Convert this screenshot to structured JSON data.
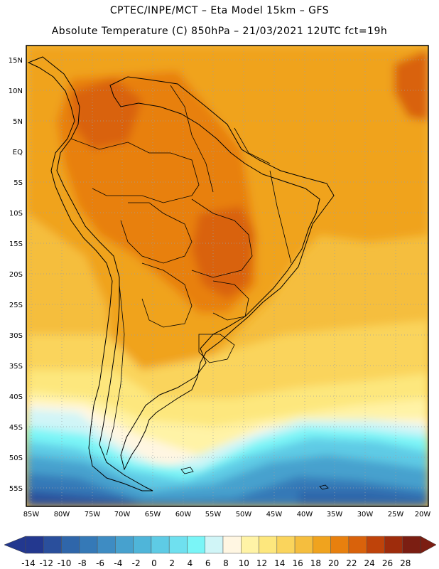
{
  "header": {
    "line1": "CPTEC/INPE/MCT –  Eta Model 15km – GFS",
    "line2": "Absolute Temperature (C) 850hPa – 21/03/2021 12UTC fct=19h"
  },
  "map": {
    "lat_labels": [
      "15N",
      "10N",
      "5N",
      "EQ",
      "5S",
      "10S",
      "15S",
      "20S",
      "25S",
      "30S",
      "35S",
      "40S",
      "45S",
      "50S",
      "55S"
    ],
    "lon_labels": [
      "85W",
      "80W",
      "75W",
      "70W",
      "65W",
      "60W",
      "55W",
      "50W",
      "45W",
      "40W",
      "35W",
      "30W",
      "25W",
      "20W"
    ],
    "lat_range": [
      15,
      -55
    ],
    "lon_range": [
      -85,
      -20
    ]
  },
  "colorbar": {
    "labels": [
      "-14",
      "-12",
      "-10",
      "-8",
      "-6",
      "-4",
      "-2",
      "0",
      "2",
      "4",
      "6",
      "8",
      "10",
      "12",
      "14",
      "16",
      "18",
      "20",
      "22",
      "24",
      "26",
      "28"
    ],
    "colors": [
      "#23388f",
      "#2a4f9c",
      "#2f66aa",
      "#3579b7",
      "#3e8cc3",
      "#47a1ce",
      "#4fb5d9",
      "#5ecbe5",
      "#6fe0ef",
      "#7af5f7",
      "#d0f5f7",
      "#fff6e2",
      "#fff3a6",
      "#fde77d",
      "#fad45c",
      "#f5be3e",
      "#f0a31e",
      "#e8800e",
      "#d9620b",
      "#bf430a",
      "#9e2c0c",
      "#7b1e12"
    ],
    "low_arrow_color": "#23388f",
    "high_arrow_color": "#7b1e12"
  }
}
